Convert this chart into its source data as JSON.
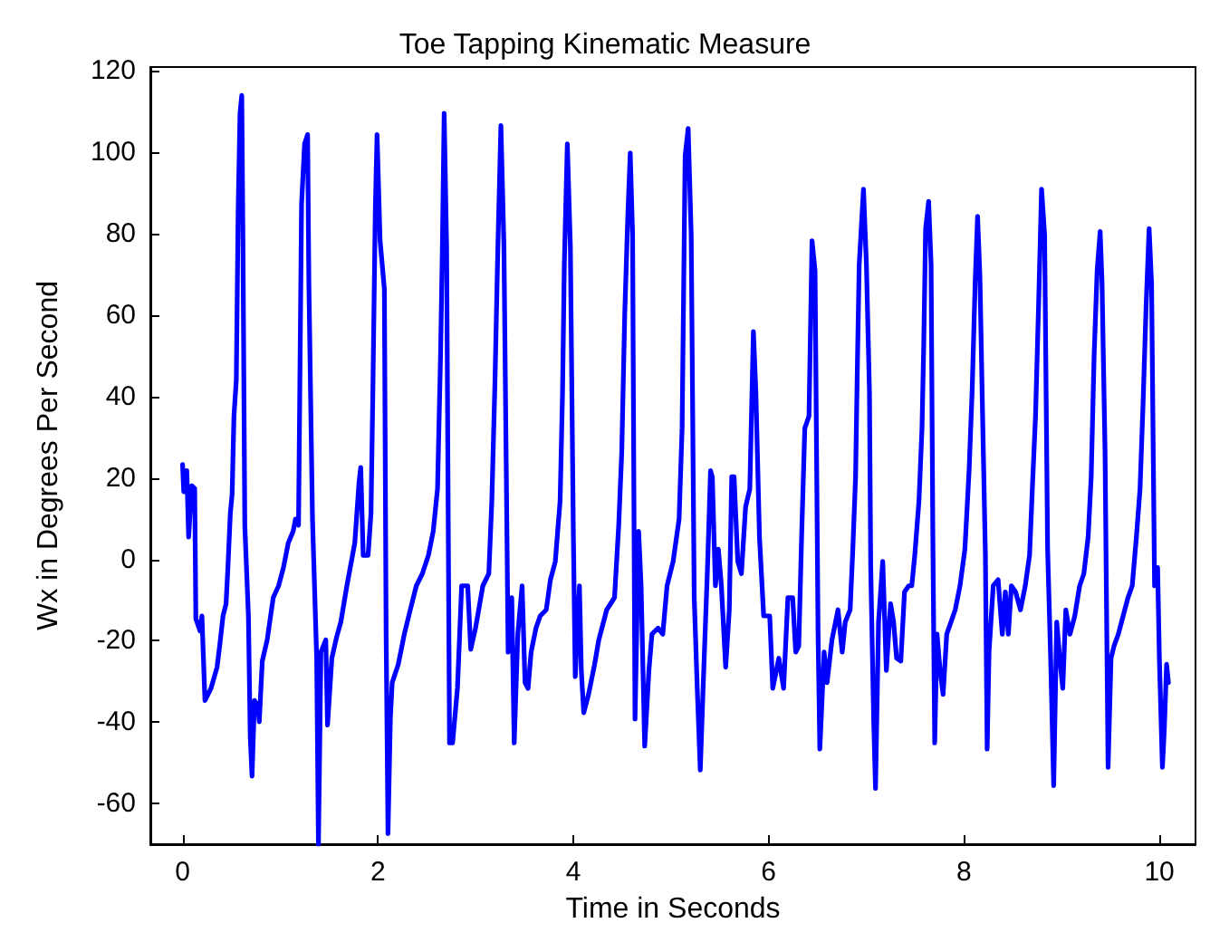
{
  "chart_data": {
    "type": "line",
    "title": "Toe Tapping Kinematic Measure",
    "xlabel": "Time in Seconds",
    "ylabel": "Wx in Degrees Per Second",
    "xlim": [
      -0.33,
      10.37
    ],
    "ylim": [
      -70,
      121
    ],
    "xticks": [
      0,
      2,
      4,
      6,
      8,
      10
    ],
    "yticks": [
      -60,
      -40,
      -20,
      0,
      20,
      40,
      60,
      80,
      100,
      120
    ],
    "grid": false,
    "marker": "none",
    "line_style": "solid",
    "series": [
      {
        "color": "#0000ff",
        "x": [
          0,
          0.012,
          0.043,
          0.062,
          0.093,
          0.124,
          0.136,
          0.179,
          0.198,
          0.229,
          0.291,
          0.353,
          0.383,
          0.414,
          0.445,
          0.464,
          0.489,
          0.507,
          0.526,
          0.55,
          0.569,
          0.588,
          0.606,
          0.618,
          0.637,
          0.674,
          0.693,
          0.711,
          0.736,
          0.773,
          0.785,
          0.816,
          0.866,
          0.928,
          0.983,
          1.033,
          1.082,
          1.132,
          1.156,
          1.187,
          1.218,
          1.249,
          1.28,
          1.293,
          1.33,
          1.373,
          1.391,
          1.416,
          1.466,
          1.484,
          1.528,
          1.577,
          1.62,
          1.682,
          1.763,
          1.806,
          1.824,
          1.849,
          1.899,
          1.929,
          1.948,
          1.973,
          1.991,
          2.022,
          2.066,
          2.084,
          2.103,
          2.127,
          2.146,
          2.208,
          2.27,
          2.331,
          2.393,
          2.455,
          2.517,
          2.566,
          2.61,
          2.641,
          2.659,
          2.678,
          2.703,
          2.733,
          2.764,
          2.814,
          2.857,
          2.919,
          2.95,
          2.999,
          3.074,
          3.135,
          3.166,
          3.197,
          3.228,
          3.259,
          3.29,
          3.321,
          3.333,
          3.37,
          3.395,
          3.432,
          3.476,
          3.506,
          3.537,
          3.568,
          3.618,
          3.661,
          3.723,
          3.766,
          3.816,
          3.865,
          3.89,
          3.908,
          3.939,
          3.97,
          4.001,
          4.02,
          4.063,
          4.082,
          4.107,
          4.156,
          4.218,
          4.261,
          4.342,
          4.422,
          4.465,
          4.496,
          4.527,
          4.558,
          4.583,
          4.607,
          4.632,
          4.669,
          4.694,
          4.731,
          4.774,
          4.805,
          4.867,
          4.916,
          4.96,
          5.022,
          5.083,
          5.114,
          5.145,
          5.176,
          5.207,
          5.238,
          5.269,
          5.3,
          5.331,
          5.374,
          5.405,
          5.423,
          5.455,
          5.485,
          5.516,
          5.56,
          5.597,
          5.622,
          5.646,
          5.684,
          5.721,
          5.764,
          5.807,
          5.844,
          5.869,
          5.906,
          5.949,
          6.011,
          6.042,
          6.104,
          6.153,
          6.197,
          6.246,
          6.277,
          6.308,
          6.339,
          6.37,
          6.413,
          6.444,
          6.475,
          6.506,
          6.524,
          6.568,
          6.598,
          6.648,
          6.71,
          6.753,
          6.784,
          6.834,
          6.859,
          6.89,
          6.908,
          6.927,
          6.971,
          7.001,
          7.032,
          7.045,
          7.075,
          7.094,
          7.125,
          7.168,
          7.205,
          7.248,
          7.279,
          7.31,
          7.353,
          7.391,
          7.434,
          7.465,
          7.496,
          7.539,
          7.57,
          7.588,
          7.607,
          7.638,
          7.663,
          7.681,
          7.7,
          7.724,
          7.755,
          7.786,
          7.823,
          7.867,
          7.91,
          7.959,
          8.009,
          8.052,
          8.083,
          8.114,
          8.139,
          8.163,
          8.188,
          8.219,
          8.237,
          8.256,
          8.299,
          8.349,
          8.392,
          8.423,
          8.454,
          8.485,
          8.528,
          8.578,
          8.627,
          8.671,
          8.702,
          8.732,
          8.763,
          8.794,
          8.825,
          8.856,
          8.887,
          8.918,
          8.949,
          8.98,
          9.011,
          9.042,
          9.085,
          9.134,
          9.184,
          9.227,
          9.271,
          9.302,
          9.332,
          9.363,
          9.394,
          9.413,
          9.444,
          9.475,
          9.505,
          9.536,
          9.58,
          9.629,
          9.679,
          9.722,
          9.765,
          9.802,
          9.833,
          9.864,
          9.895,
          9.92,
          9.951,
          9.982,
          10,
          10.031,
          10.05,
          10.074,
          10.093
        ],
        "values": [
          23.3,
          16.6,
          21.8,
          5.5,
          18.1,
          17.4,
          -14.6,
          -17.6,
          -13.9,
          -34.7,
          -31.7,
          -26.5,
          -20.6,
          -13.9,
          -10.9,
          -2,
          11.4,
          15.9,
          35.2,
          44.1,
          85.8,
          109.6,
          114,
          78.3,
          8.4,
          -13.9,
          -43.6,
          -53.3,
          -34.7,
          -36.2,
          -39.9,
          -25,
          -19.8,
          -9.4,
          -6.5,
          -2,
          4,
          6.9,
          9.9,
          8.4,
          87.3,
          102.1,
          104.4,
          67.9,
          9.9,
          -24.3,
          -70,
          -22.8,
          -19.8,
          -40.7,
          -24.3,
          -19.1,
          -15.4,
          -6.5,
          4,
          18.8,
          22.6,
          1,
          1,
          11.4,
          41.2,
          85.8,
          104.4,
          78.3,
          66.4,
          -18.4,
          -67.4,
          -39.2,
          -30.3,
          -25.8,
          -18.4,
          -12.4,
          -6.5,
          -3.5,
          1,
          6.9,
          17.3,
          50.1,
          75.4,
          109.6,
          76.9,
          -45.1,
          -45.1,
          -31.7,
          -6.5,
          -6.5,
          -22.1,
          -16.9,
          -6.5,
          -3.5,
          14.4,
          42.6,
          76.9,
          106.6,
          76.9,
          5.5,
          -22.8,
          -9.4,
          -45.1,
          -18.4,
          -6.5,
          -30.3,
          -31.7,
          -22.8,
          -16.9,
          -13.9,
          -12.4,
          -5,
          -0.5,
          14.4,
          41.2,
          72.4,
          102.1,
          76.9,
          5.5,
          -28.8,
          -6.5,
          -27.3,
          -37.7,
          -33.2,
          -25.8,
          -19.8,
          -12.4,
          -9.4,
          8.4,
          26.3,
          60.5,
          84.3,
          99.9,
          79.8,
          -39.2,
          6.9,
          -6.5,
          -45.9,
          -27.3,
          -18.4,
          -16.9,
          -18.4,
          -6.5,
          -0.5,
          9.9,
          32.2,
          99.2,
          105.9,
          79.8,
          -9.4,
          -31.7,
          -51.8,
          -30.3,
          -2,
          21.8,
          20.3,
          -6.5,
          2.5,
          -6.5,
          -26.5,
          -12.4,
          20.3,
          20.3,
          -0.5,
          -3.5,
          12.9,
          17.3,
          56,
          41.2,
          5.5,
          -13.9,
          -13.9,
          -31.7,
          -24.3,
          -31.7,
          -9.4,
          -9.4,
          -22.8,
          -21.3,
          6.9,
          32.2,
          35.2,
          78.3,
          70.9,
          -18.4,
          -46.6,
          -22.8,
          -30.3,
          -19.8,
          -12.4,
          -22.8,
          -15.4,
          -12.4,
          1,
          20.3,
          47.1,
          72.4,
          91,
          72.4,
          41.2,
          -2,
          -39.2,
          -56.3,
          -15.4,
          -0.5,
          -27.3,
          -10.9,
          -15.4,
          -24.3,
          -25,
          -8,
          -6.5,
          -6.5,
          1,
          14.4,
          32.2,
          53.1,
          81.3,
          88,
          72.4,
          5.5,
          -45.1,
          -18.4,
          -27.3,
          -33.2,
          -18.4,
          -15.4,
          -12.4,
          -6.5,
          2.5,
          21.8,
          41.2,
          67.9,
          84.3,
          69.4,
          38.2,
          1,
          -46.6,
          -22.8,
          -6.5,
          -5,
          -18.4,
          -8,
          -18.4,
          -6.5,
          -8,
          -12.4,
          -6.5,
          1,
          18.8,
          35.2,
          62,
          91,
          79.8,
          2.5,
          -24.3,
          -55.6,
          -15.4,
          -24.3,
          -31.7,
          -12.4,
          -18.4,
          -13.9,
          -6.5,
          -3.5,
          5.5,
          20.3,
          50.1,
          70.9,
          80.6,
          67.9,
          26.3,
          -51.1,
          -24.3,
          -21.3,
          -18.4,
          -13.9,
          -9.4,
          -6.5,
          5.5,
          17.3,
          38.2,
          62,
          81.3,
          67.9,
          -6.5,
          -2,
          -24.3,
          -51.1,
          -42.2,
          -25.8,
          -30.3
        ]
      }
    ]
  }
}
